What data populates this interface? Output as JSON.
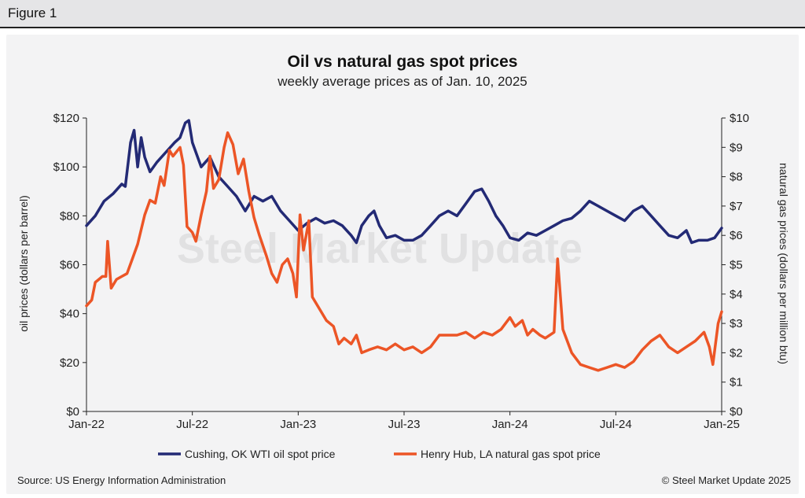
{
  "figure_label": "Figure 1",
  "footer": {
    "source": "Source: US Energy Information Administration",
    "copyright": "© Steel Market Update 2025"
  },
  "watermark": "Steel Market Update",
  "colors": {
    "oil": "#232a75",
    "gas": "#ec5526",
    "axis": "#222222",
    "background": "#f3f3f4"
  },
  "chart_data": {
    "type": "line",
    "title": "Oil vs natural gas spot prices",
    "subtitle": "weekly average prices as of Jan. 10, 2025",
    "x_ticks": [
      "Jan-22",
      "Jul-22",
      "Jan-23",
      "Jul-23",
      "Jan-24",
      "Jul-24",
      "Jan-25"
    ],
    "x_range_months": [
      0,
      36
    ],
    "y_left": {
      "label": "oil prices (dollars per barrel)",
      "range": [
        0,
        120
      ],
      "ticks": [
        "$0",
        "$20",
        "$40",
        "$60",
        "$80",
        "$100",
        "$120"
      ]
    },
    "y_right": {
      "label": "natural gas prices (dollars per million btu)",
      "range": [
        0,
        10
      ],
      "ticks": [
        "$0",
        "$1",
        "$2",
        "$3",
        "$4",
        "$5",
        "$6",
        "$7",
        "$8",
        "$9",
        "$10"
      ]
    },
    "series": [
      {
        "name": "Cushing, OK WTI oil spot price",
        "axis": "left",
        "points": [
          [
            0,
            76
          ],
          [
            0.5,
            80
          ],
          [
            1,
            86
          ],
          [
            1.5,
            89
          ],
          [
            2,
            93
          ],
          [
            2.2,
            92
          ],
          [
            2.5,
            110
          ],
          [
            2.7,
            115
          ],
          [
            2.9,
            100
          ],
          [
            3.1,
            112
          ],
          [
            3.3,
            104
          ],
          [
            3.6,
            98
          ],
          [
            4,
            102
          ],
          [
            4.5,
            106
          ],
          [
            5,
            110
          ],
          [
            5.3,
            112
          ],
          [
            5.6,
            118
          ],
          [
            5.8,
            119
          ],
          [
            6,
            110
          ],
          [
            6.5,
            100
          ],
          [
            7,
            104
          ],
          [
            7.5,
            96
          ],
          [
            8,
            92
          ],
          [
            8.5,
            88
          ],
          [
            9,
            82
          ],
          [
            9.5,
            88
          ],
          [
            10,
            86
          ],
          [
            10.5,
            88
          ],
          [
            11,
            82
          ],
          [
            11.5,
            78
          ],
          [
            12,
            74
          ],
          [
            12.5,
            77
          ],
          [
            13,
            79
          ],
          [
            13.5,
            77
          ],
          [
            14,
            78
          ],
          [
            14.5,
            76
          ],
          [
            15,
            72
          ],
          [
            15.3,
            69
          ],
          [
            15.6,
            76
          ],
          [
            16,
            80
          ],
          [
            16.3,
            82
          ],
          [
            16.6,
            76
          ],
          [
            17,
            71
          ],
          [
            17.5,
            72
          ],
          [
            18,
            70
          ],
          [
            18.5,
            70
          ],
          [
            19,
            72
          ],
          [
            19.5,
            76
          ],
          [
            20,
            80
          ],
          [
            20.5,
            82
          ],
          [
            21,
            80
          ],
          [
            21.5,
            85
          ],
          [
            22,
            90
          ],
          [
            22.4,
            91
          ],
          [
            22.8,
            86
          ],
          [
            23.2,
            80
          ],
          [
            23.6,
            76
          ],
          [
            24,
            71
          ],
          [
            24.5,
            70
          ],
          [
            25,
            73
          ],
          [
            25.5,
            72
          ],
          [
            26,
            74
          ],
          [
            26.5,
            76
          ],
          [
            27,
            78
          ],
          [
            27.5,
            79
          ],
          [
            28,
            82
          ],
          [
            28.5,
            86
          ],
          [
            29,
            84
          ],
          [
            29.5,
            82
          ],
          [
            30,
            80
          ],
          [
            30.5,
            78
          ],
          [
            31,
            82
          ],
          [
            31.5,
            84
          ],
          [
            32,
            80
          ],
          [
            32.5,
            76
          ],
          [
            33,
            72
          ],
          [
            33.5,
            71
          ],
          [
            34,
            74
          ],
          [
            34.3,
            69
          ],
          [
            34.7,
            70
          ],
          [
            35.2,
            70
          ],
          [
            35.6,
            71
          ],
          [
            36,
            75
          ]
        ]
      },
      {
        "name": "Henry Hub, LA natural gas spot price",
        "axis": "right",
        "points": [
          [
            0,
            3.6
          ],
          [
            0.3,
            3.8
          ],
          [
            0.5,
            4.4
          ],
          [
            0.9,
            4.6
          ],
          [
            1.1,
            4.6
          ],
          [
            1.2,
            5.8
          ],
          [
            1.4,
            4.2
          ],
          [
            1.7,
            4.5
          ],
          [
            2,
            4.6
          ],
          [
            2.3,
            4.7
          ],
          [
            2.6,
            5.2
          ],
          [
            2.9,
            5.7
          ],
          [
            3.3,
            6.7
          ],
          [
            3.6,
            7.2
          ],
          [
            3.9,
            7.1
          ],
          [
            4.2,
            8.0
          ],
          [
            4.4,
            7.7
          ],
          [
            4.7,
            8.9
          ],
          [
            4.9,
            8.7
          ],
          [
            5.3,
            9.0
          ],
          [
            5.5,
            8.4
          ],
          [
            5.7,
            6.3
          ],
          [
            6.0,
            6.1
          ],
          [
            6.2,
            5.8
          ],
          [
            6.5,
            6.7
          ],
          [
            6.8,
            7.5
          ],
          [
            7.0,
            8.7
          ],
          [
            7.2,
            7.6
          ],
          [
            7.5,
            7.9
          ],
          [
            7.8,
            9.0
          ],
          [
            8.0,
            9.5
          ],
          [
            8.3,
            9.1
          ],
          [
            8.6,
            8.1
          ],
          [
            8.9,
            8.6
          ],
          [
            9.2,
            7.5
          ],
          [
            9.5,
            6.6
          ],
          [
            9.8,
            6.0
          ],
          [
            10.2,
            5.3
          ],
          [
            10.5,
            4.7
          ],
          [
            10.8,
            4.4
          ],
          [
            11.1,
            5.0
          ],
          [
            11.4,
            5.2
          ],
          [
            11.7,
            4.7
          ],
          [
            11.9,
            3.9
          ],
          [
            12.1,
            6.7
          ],
          [
            12.3,
            5.5
          ],
          [
            12.6,
            6.5
          ],
          [
            12.8,
            3.9
          ],
          [
            13.2,
            3.5
          ],
          [
            13.6,
            3.1
          ],
          [
            14,
            2.9
          ],
          [
            14.3,
            2.3
          ],
          [
            14.6,
            2.5
          ],
          [
            15,
            2.3
          ],
          [
            15.3,
            2.6
          ],
          [
            15.6,
            2.0
          ],
          [
            16,
            2.1
          ],
          [
            16.5,
            2.2
          ],
          [
            17,
            2.1
          ],
          [
            17.5,
            2.3
          ],
          [
            18,
            2.1
          ],
          [
            18.5,
            2.2
          ],
          [
            19,
            2.0
          ],
          [
            19.5,
            2.2
          ],
          [
            20,
            2.6
          ],
          [
            20.5,
            2.6
          ],
          [
            21,
            2.6
          ],
          [
            21.5,
            2.7
          ],
          [
            22,
            2.5
          ],
          [
            22.5,
            2.7
          ],
          [
            23,
            2.6
          ],
          [
            23.5,
            2.8
          ],
          [
            24,
            3.2
          ],
          [
            24.3,
            2.9
          ],
          [
            24.7,
            3.1
          ],
          [
            25,
            2.6
          ],
          [
            25.3,
            2.8
          ],
          [
            25.7,
            2.6
          ],
          [
            26,
            2.5
          ],
          [
            26.5,
            2.7
          ],
          [
            26.7,
            5.2
          ],
          [
            27,
            2.8
          ],
          [
            27.5,
            2.0
          ],
          [
            28,
            1.6
          ],
          [
            28.5,
            1.5
          ],
          [
            29,
            1.4
          ],
          [
            29.5,
            1.5
          ],
          [
            30,
            1.6
          ],
          [
            30.5,
            1.5
          ],
          [
            31,
            1.7
          ],
          [
            31.5,
            2.1
          ],
          [
            32,
            2.4
          ],
          [
            32.5,
            2.6
          ],
          [
            33,
            2.2
          ],
          [
            33.5,
            2.0
          ],
          [
            34,
            2.2
          ],
          [
            34.5,
            2.4
          ],
          [
            35,
            2.7
          ],
          [
            35.3,
            2.2
          ],
          [
            35.5,
            1.6
          ],
          [
            35.8,
            3.0
          ],
          [
            36,
            3.4
          ]
        ]
      }
    ],
    "legend_position": "bottom"
  }
}
